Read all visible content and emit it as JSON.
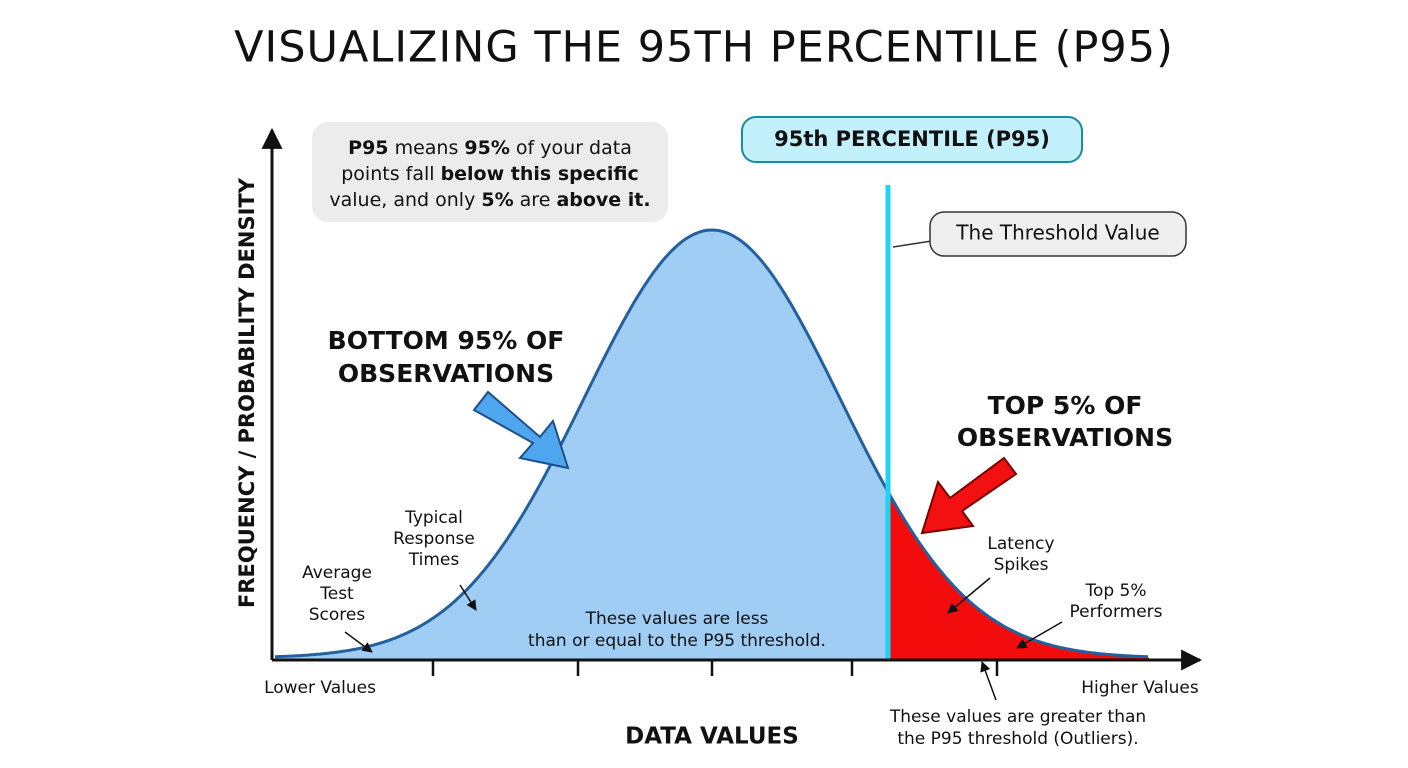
{
  "title": "VISUALIZING THE 95TH PERCENTILE (P95)",
  "y_axis_label": "FREQUENCY / PROBABILITY DENSITY",
  "x_axis_label": "DATA VALUES",
  "x_axis_ends": [
    "Lower Values",
    "Higher Values"
  ],
  "info_box": {
    "lines": [
      [
        {
          "text": "P95",
          "bold": true
        },
        {
          "text": " means ",
          "bold": false
        },
        {
          "text": "95%",
          "bold": true
        },
        {
          "text": " of your data",
          "bold": false
        }
      ],
      [
        {
          "text": "points fall ",
          "bold": false
        },
        {
          "text": "below this specific",
          "bold": true
        }
      ],
      [
        {
          "text": "value, and only ",
          "bold": false
        },
        {
          "text": "5%",
          "bold": true
        },
        {
          "text": " are ",
          "bold": false
        },
        {
          "text": "above it.",
          "bold": true
        }
      ]
    ]
  },
  "marker_label": "95th PERCENTILE (P95)",
  "threshold_callout": "The Threshold Value",
  "bottom_label": [
    "BOTTOM 95% OF",
    "OBSERVATIONS"
  ],
  "top_label": [
    "TOP 5% OF",
    "OBSERVATIONS"
  ],
  "annotations": {
    "typical": [
      "Typical",
      "Response",
      "Times"
    ],
    "average": [
      "Average",
      "Test",
      "Scores"
    ],
    "latency": [
      "Latency",
      "Spikes"
    ],
    "performers": [
      "Top 5%",
      "Performers"
    ]
  },
  "below_note": [
    "These values are less",
    "than or equal to the P95 threshold."
  ],
  "above_note": [
    "These values are greater than",
    "the P95 threshold (Outliers)."
  ]
}
